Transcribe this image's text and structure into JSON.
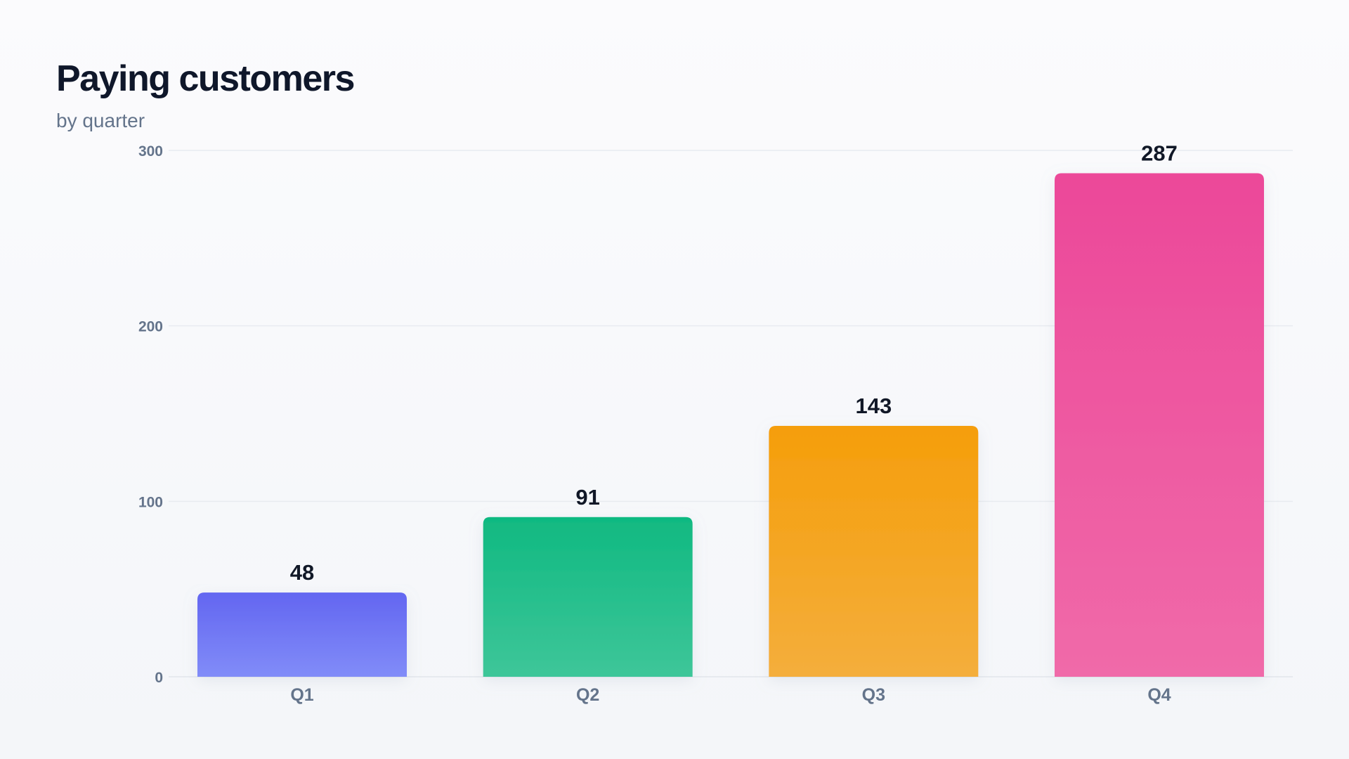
{
  "chart_data": {
    "type": "bar",
    "title": "Paying customers",
    "subtitle": "by quarter",
    "xlabel": "",
    "ylabel": "",
    "categories": [
      "Q1",
      "Q2",
      "Q3",
      "Q4"
    ],
    "values": [
      48,
      91,
      143,
      287
    ],
    "ylim": [
      0,
      300
    ],
    "yticks": [
      0,
      100,
      200,
      300
    ],
    "grid": true,
    "legend": "none",
    "colors": [
      [
        "#6366f1",
        "#818cf8"
      ],
      [
        "#10b981",
        "#3ec699"
      ],
      [
        "#f59e0b",
        "#f4ae3c"
      ],
      [
        "#ec4899",
        "#f06aa9"
      ]
    ]
  }
}
